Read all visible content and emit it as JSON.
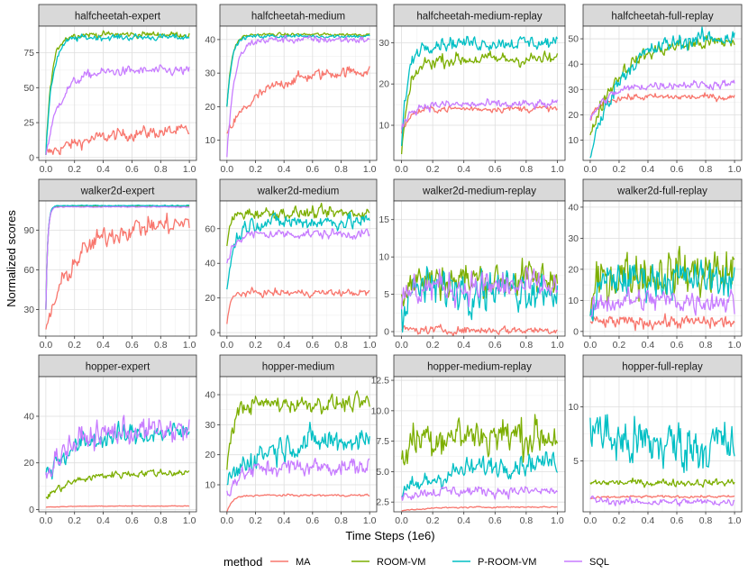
{
  "chart_data": {
    "type": "line",
    "xlabel": "Time Steps (1e6)",
    "ylabel": "Normalized scores",
    "x_ticks": [
      "0.0",
      "0.2",
      "0.4",
      "0.6",
      "0.8",
      "1.0"
    ],
    "x_range": [
      0,
      1
    ],
    "legend": {
      "title": "method",
      "position": "bottom",
      "entries": [
        {
          "name": "MA",
          "color": "#F8766D"
        },
        {
          "name": "ROOM-VM",
          "color": "#7CAE00"
        },
        {
          "name": "P-ROOM-VM",
          "color": "#00BFC4"
        },
        {
          "name": "SQL",
          "color": "#C77CFF"
        }
      ]
    },
    "panels": [
      {
        "title": "halfcheetah-expert",
        "ylim": [
          -2,
          94
        ],
        "yticks": [
          "0",
          "25",
          "50",
          "75"
        ],
        "ytick_values": [
          0,
          25,
          50,
          75
        ],
        "series": [
          {
            "name": "MA",
            "start": 2,
            "plateau": 20,
            "rate": 3,
            "noise": 4
          },
          {
            "name": "ROOM-VM",
            "start": 2,
            "plateau": 88,
            "rate": 25,
            "noise": 2
          },
          {
            "name": "P-ROOM-VM",
            "start": 2,
            "plateau": 86,
            "rate": 22,
            "noise": 2
          },
          {
            "name": "SQL",
            "start": 2,
            "plateau": 62,
            "rate": 10,
            "noise": 3
          }
        ]
      },
      {
        "title": "halfcheetah-medium",
        "ylim": [
          4,
          44
        ],
        "yticks": [
          "10",
          "20",
          "30",
          "40"
        ],
        "ytick_values": [
          10,
          20,
          30,
          40
        ],
        "series": [
          {
            "name": "MA",
            "start": 12,
            "plateau": 31,
            "rate": 4,
            "noise": 1.5
          },
          {
            "name": "ROOM-VM",
            "start": 20,
            "plateau": 41.5,
            "rate": 30,
            "noise": 0.4
          },
          {
            "name": "P-ROOM-VM",
            "start": 20,
            "plateau": 41,
            "rate": 30,
            "noise": 0.5
          },
          {
            "name": "SQL",
            "start": 5,
            "plateau": 40,
            "rate": 20,
            "noise": 1
          }
        ]
      },
      {
        "title": "halfcheetah-medium-replay",
        "ylim": [
          1.5,
          34
        ],
        "yticks": [
          "10",
          "20",
          "30"
        ],
        "ytick_values": [
          10,
          20,
          30
        ],
        "series": [
          {
            "name": "MA",
            "start": 8,
            "plateau": 14,
            "rate": 20,
            "noise": 0.7
          },
          {
            "name": "ROOM-VM",
            "start": 3,
            "plateau": 26,
            "rate": 20,
            "noise": 1.5
          },
          {
            "name": "P-ROOM-VM",
            "start": 5,
            "plateau": 30,
            "rate": 25,
            "noise": 1.5
          },
          {
            "name": "SQL",
            "start": 9,
            "plateau": 15,
            "rate": 20,
            "noise": 1
          }
        ]
      },
      {
        "title": "halfcheetah-full-replay",
        "ylim": [
          2,
          55
        ],
        "yticks": [
          "10",
          "20",
          "30",
          "40",
          "50"
        ],
        "ytick_values": [
          10,
          20,
          30,
          40,
          50
        ],
        "series": [
          {
            "name": "MA",
            "start": 18,
            "plateau": 27,
            "rate": 15,
            "noise": 1.2
          },
          {
            "name": "ROOM-VM",
            "start": 12,
            "plateau": 49,
            "rate": 5,
            "noise": 2.5
          },
          {
            "name": "P-ROOM-VM",
            "start": 3,
            "plateau": 51,
            "rate": 5,
            "noise": 3
          },
          {
            "name": "SQL",
            "start": 18,
            "plateau": 32,
            "rate": 8,
            "noise": 1.5
          }
        ]
      },
      {
        "title": "walker2d-expert",
        "ylim": [
          10,
          112
        ],
        "yticks": [
          "30",
          "60",
          "90"
        ],
        "ytick_values": [
          30,
          60,
          90
        ],
        "series": [
          {
            "name": "MA",
            "start": 15,
            "plateau": 95,
            "rate": 5,
            "noise": 7
          },
          {
            "name": "ROOM-VM",
            "start": 30,
            "plateau": 108,
            "rate": 80,
            "noise": 0.3
          },
          {
            "name": "P-ROOM-VM",
            "start": 30,
            "plateau": 108.5,
            "rate": 80,
            "noise": 0.3
          },
          {
            "name": "SQL",
            "start": 30,
            "plateau": 107.5,
            "rate": 80,
            "noise": 0.3
          }
        ]
      },
      {
        "title": "walker2d-medium",
        "ylim": [
          -2,
          76
        ],
        "yticks": [
          "0",
          "20",
          "40",
          "60"
        ],
        "ytick_values": [
          0,
          20,
          40,
          60
        ],
        "series": [
          {
            "name": "MA",
            "start": 5,
            "plateau": 23,
            "rate": 40,
            "noise": 1.8
          },
          {
            "name": "ROOM-VM",
            "start": 50,
            "plateau": 69,
            "rate": 40,
            "noise": 3
          },
          {
            "name": "P-ROOM-VM",
            "start": 25,
            "plateau": 64,
            "rate": 20,
            "noise": 4
          },
          {
            "name": "SQL",
            "start": 40,
            "plateau": 57,
            "rate": 20,
            "noise": 2.5
          }
        ]
      },
      {
        "title": "walker2d-medium-replay",
        "ylim": [
          -0.6,
          17.5
        ],
        "yticks": [
          "0",
          "5",
          "10",
          "15"
        ],
        "ytick_values": [
          0,
          5,
          10,
          15
        ],
        "series": [
          {
            "name": "MA",
            "start": 0.3,
            "plateau": 0.2,
            "rate": 20,
            "noise": 0.5
          },
          {
            "name": "ROOM-VM",
            "start": 5,
            "plateau": 7,
            "rate": 20,
            "noise": 2.2
          },
          {
            "name": "P-ROOM-VM",
            "start": 3,
            "plateau": 6,
            "rate": 20,
            "noise": 2.5
          },
          {
            "name": "SQL",
            "start": 3,
            "plateau": 6,
            "rate": 20,
            "noise": 2
          }
        ]
      },
      {
        "title": "walker2d-full-replay",
        "ylim": [
          -1.5,
          42
        ],
        "yticks": [
          "0",
          "10",
          "20",
          "30",
          "40"
        ],
        "ytick_values": [
          0,
          10,
          20,
          30,
          40
        ],
        "series": [
          {
            "name": "MA",
            "start": 3,
            "plateau": 3,
            "rate": 20,
            "noise": 1.8
          },
          {
            "name": "ROOM-VM",
            "start": 5,
            "plateau": 19,
            "rate": 20,
            "noise": 7
          },
          {
            "name": "P-ROOM-VM",
            "start": 5,
            "plateau": 17,
            "rate": 20,
            "noise": 5
          },
          {
            "name": "SQL",
            "start": 5,
            "plateau": 10,
            "rate": 20,
            "noise": 3.5
          }
        ]
      },
      {
        "title": "hopper-expert",
        "ylim": [
          -1,
          57
        ],
        "yticks": [
          "0",
          "20",
          "40"
        ],
        "ytick_values": [
          0,
          20,
          40
        ],
        "series": [
          {
            "name": "MA",
            "start": 1,
            "plateau": 1.5,
            "rate": 5,
            "noise": 0.1
          },
          {
            "name": "ROOM-VM",
            "start": 5,
            "plateau": 16,
            "rate": 5,
            "noise": 1.5
          },
          {
            "name": "P-ROOM-VM",
            "start": 15,
            "plateau": 33,
            "rate": 5,
            "noise": 4
          },
          {
            "name": "SQL",
            "start": 16,
            "plateau": 34,
            "rate": 6,
            "noise": 5
          }
        ]
      },
      {
        "title": "hopper-medium",
        "ylim": [
          1,
          46
        ],
        "yticks": [
          "10",
          "20",
          "30",
          "40"
        ],
        "ytick_values": [
          10,
          20,
          30,
          40
        ],
        "series": [
          {
            "name": "MA",
            "start": 1,
            "plateau": 6.5,
            "rate": 25,
            "noise": 0.3
          },
          {
            "name": "ROOM-VM",
            "start": 15,
            "plateau": 37,
            "rate": 25,
            "noise": 2.5
          },
          {
            "name": "P-ROOM-VM",
            "start": 10,
            "plateau": 25,
            "rate": 5,
            "noise": 4
          },
          {
            "name": "SQL",
            "start": 8,
            "plateau": 16,
            "rate": 10,
            "noise": 2.5
          }
        ]
      },
      {
        "title": "hopper-medium-replay",
        "ylim": [
          1.7,
          12.8
        ],
        "yticks": [
          "2.5",
          "5.0",
          "7.5",
          "10.0",
          "12.5"
        ],
        "ytick_values": [
          2.5,
          5,
          7.5,
          10,
          12.5
        ],
        "series": [
          {
            "name": "MA",
            "start": 1.8,
            "plateau": 2.1,
            "rate": 5,
            "noise": 0.05
          },
          {
            "name": "ROOM-VM",
            "start": 6,
            "plateau": 8,
            "rate": 20,
            "noise": 1.5
          },
          {
            "name": "P-ROOM-VM",
            "start": 3,
            "plateau": 6,
            "rate": 3,
            "noise": 0.8
          },
          {
            "name": "SQL",
            "start": 3,
            "plateau": 3.4,
            "rate": 10,
            "noise": 0.4
          }
        ]
      },
      {
        "title": "hopper-full-replay",
        "ylim": [
          0.3,
          12.8
        ],
        "yticks": [
          "5",
          "10"
        ],
        "ytick_values": [
          5,
          10
        ],
        "series": [
          {
            "name": "MA",
            "start": 1.5,
            "plateau": 1.7,
            "rate": 10,
            "noise": 0.1
          },
          {
            "name": "ROOM-VM",
            "start": 3,
            "plateau": 3,
            "rate": 10,
            "noise": 0.3
          },
          {
            "name": "P-ROOM-VM",
            "start": 9,
            "plateau": 6.5,
            "rate": 10,
            "noise": 2.2
          },
          {
            "name": "SQL",
            "start": 1.5,
            "plateau": 1.2,
            "rate": 10,
            "noise": 0.3
          }
        ]
      }
    ]
  }
}
